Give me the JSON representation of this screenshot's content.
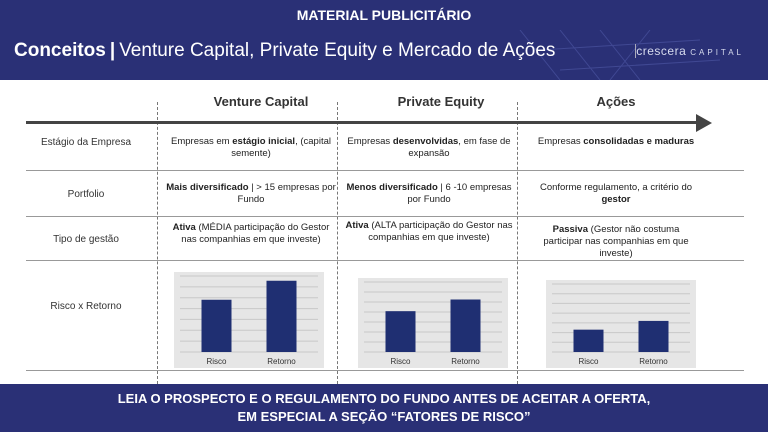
{
  "top_banner": "MATERIAL PUBLICITÁRIO",
  "header": {
    "title_bold": "Conceitos",
    "separator": "|",
    "title_rest": "Venture Capital, Private Equity e Mercado de Ações",
    "logo_main": "crescera",
    "logo_sub": "CAPITAL"
  },
  "columns": [
    "Venture Capital",
    "Private Equity",
    "Ações"
  ],
  "rows": [
    {
      "label": "Estágio da Empresa",
      "cells": [
        {
          "pre": "Empresas em ",
          "bold": "estágio inicial",
          "post": ", (capital semente)"
        },
        {
          "pre": "Empresas ",
          "bold": "desenvolvidas",
          "post": ", em fase de expansão"
        },
        {
          "pre": "Empresas ",
          "bold": "consolidadas e maduras",
          "post": ""
        }
      ]
    },
    {
      "label": "Portfolio",
      "cells": [
        {
          "pre": "",
          "bold": "Mais diversificado",
          "post": " | > 15 empresas por Fundo"
        },
        {
          "pre": "",
          "bold": "Menos diversificado",
          "post": " | 6 -10 empresas por Fundo"
        },
        {
          "pre": "Conforme regulamento, a critério do ",
          "bold": "gestor",
          "post": ""
        }
      ]
    },
    {
      "label": "Tipo de gestão",
      "cells": [
        {
          "pre": "",
          "bold": "Ativa",
          "post": " (MÉDIA participação do Gestor nas companhias em que investe)"
        },
        {
          "pre": "",
          "bold": "Ativa",
          "post": " (ALTA participação do Gestor nas companhias em que investe)"
        },
        {
          "pre": "",
          "bold": "Passiva",
          "post": " (Gestor não costuma participar nas companhias em que investe)"
        }
      ]
    },
    {
      "label": "Risco x Retorno",
      "cells": []
    }
  ],
  "chart_data": [
    {
      "type": "bar",
      "categories": [
        "Risco",
        "Retorno"
      ],
      "values": [
        5.5,
        7.5
      ],
      "ylim": [
        0,
        8
      ],
      "grid": true,
      "color": "#1f2f72"
    },
    {
      "type": "bar",
      "categories": [
        "Risco",
        "Retorno"
      ],
      "values": [
        3.5,
        4.5
      ],
      "ylim": [
        0,
        6
      ],
      "grid": true,
      "color": "#1f2f72"
    },
    {
      "type": "bar",
      "categories": [
        "Risco",
        "Retorno"
      ],
      "values": [
        2.3,
        3.2
      ],
      "ylim": [
        0,
        7
      ],
      "grid": true,
      "color": "#1f2f72"
    }
  ],
  "bottom_banner": {
    "line1": "LEIA O PROSPECTO E O REGULAMENTO DO FUNDO ANTES DE ACEITAR A OFERTA,",
    "line2": "EM ESPECIAL A SEÇÃO “FATORES DE RISCO”"
  },
  "colors": {
    "brand": "#2a3076",
    "bar": "#1f2f72",
    "chart_bg": "#e6e6e6"
  }
}
